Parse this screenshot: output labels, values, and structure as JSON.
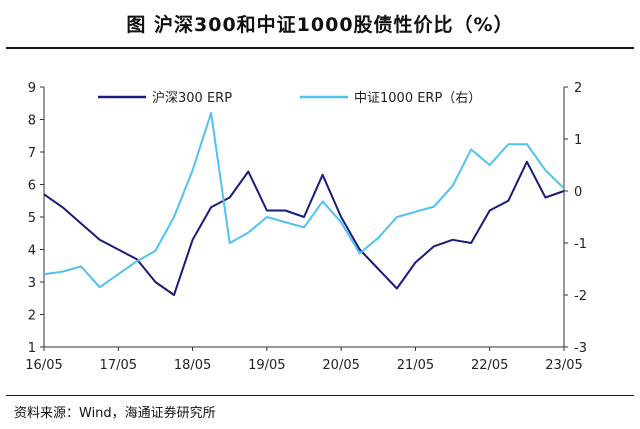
{
  "title": "图  沪深300和中证1000股债性价比（%）",
  "source": "资料来源：Wind，海通证券研究所",
  "colors": {
    "series1": "#1b1b7a",
    "series2": "#4fc3ee",
    "axis": "#333333"
  },
  "chart_data": {
    "type": "line",
    "title": "图  沪深300和中证1000股债性价比（%）",
    "xlabel": "",
    "ylabel": "",
    "x_ticks": [
      "16/05",
      "17/05",
      "18/05",
      "19/05",
      "20/05",
      "21/05",
      "22/05",
      "23/05"
    ],
    "ylim_left": [
      1,
      9
    ],
    "ylim_right": [
      -3,
      2
    ],
    "y_ticks_left": [
      "1",
      "2",
      "3",
      "4",
      "5",
      "6",
      "7",
      "8",
      "9"
    ],
    "y_ticks_right": [
      "-3",
      "-2",
      "-1",
      "0",
      "1",
      "2"
    ],
    "grid": false,
    "legend_position": "top",
    "series": [
      {
        "name": "沪深300 ERP",
        "axis": "left",
        "x": [
          "16/05",
          "16/08",
          "16/11",
          "17/02",
          "17/05",
          "17/08",
          "17/11",
          "18/02",
          "18/05",
          "18/08",
          "18/11",
          "19/02",
          "19/05",
          "19/08",
          "19/11",
          "20/02",
          "20/05",
          "20/08",
          "20/11",
          "21/02",
          "21/05",
          "21/08",
          "21/11",
          "22/02",
          "22/05",
          "22/08",
          "22/11",
          "23/02",
          "23/05"
        ],
        "values": [
          5.7,
          5.3,
          4.8,
          4.3,
          4.0,
          3.7,
          3.0,
          2.6,
          4.3,
          5.3,
          5.6,
          6.4,
          5.2,
          5.2,
          5.0,
          6.3,
          5.0,
          4.0,
          3.4,
          2.8,
          3.6,
          4.1,
          4.3,
          4.2,
          5.2,
          5.5,
          6.7,
          5.6,
          5.8
        ]
      },
      {
        "name": "中证1000 ERP（右）",
        "axis": "right",
        "x": [
          "16/05",
          "16/08",
          "16/11",
          "17/02",
          "17/05",
          "17/08",
          "17/11",
          "18/02",
          "18/05",
          "18/08",
          "18/11",
          "19/02",
          "19/05",
          "19/08",
          "19/11",
          "20/02",
          "20/05",
          "20/08",
          "20/11",
          "21/02",
          "21/05",
          "21/08",
          "21/11",
          "22/02",
          "22/05",
          "22/08",
          "22/11",
          "23/02",
          "23/05"
        ],
        "values": [
          -1.6,
          -1.55,
          -1.45,
          -1.85,
          -1.6,
          -1.35,
          -1.15,
          -0.5,
          0.4,
          1.5,
          -1.0,
          -0.8,
          -0.5,
          -0.6,
          -0.7,
          -0.2,
          -0.6,
          -1.2,
          -0.9,
          -0.5,
          -0.4,
          -0.3,
          0.1,
          0.8,
          0.5,
          0.9,
          0.9,
          0.4,
          0.05
        ]
      }
    ]
  }
}
